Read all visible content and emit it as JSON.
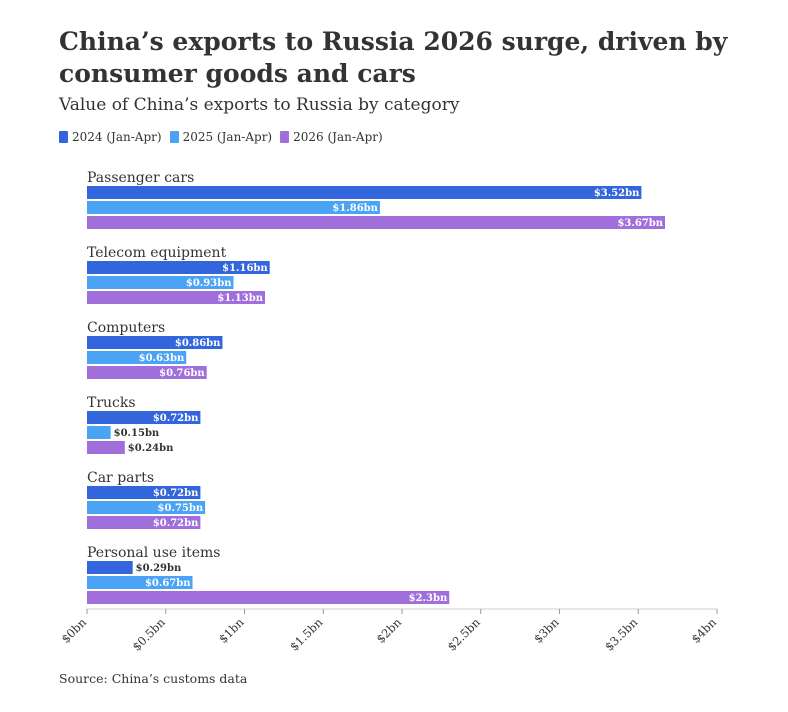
{
  "title": "China’s exports to Russia 2026 surge, driven by consumer goods and cars",
  "subtitle": "Value of China’s exports to Russia by category",
  "footer": "Source: China’s customs data",
  "legend": [
    {
      "label": "2024 (Jan-Apr)",
      "color": "#3366dd"
    },
    {
      "label": "2025 (Jan-Apr)",
      "color": "#4aa3f5"
    },
    {
      "label": "2026 (Jan-Apr)",
      "color": "#a06fdc"
    }
  ],
  "chart_data": {
    "type": "bar",
    "orientation": "horizontal",
    "categories": [
      "Passenger cars",
      "Telecom equipment",
      "Computers",
      "Trucks",
      "Car parts",
      "Personal use items"
    ],
    "series": [
      {
        "name": "2024 (Jan-Apr)",
        "values": [
          3.52,
          1.16,
          0.86,
          0.72,
          0.72,
          0.29
        ],
        "labels": [
          "$3.52bn",
          "$1.16bn",
          "$0.86bn",
          "$0.72bn",
          "$0.72bn",
          "$0.29bn"
        ]
      },
      {
        "name": "2025 (Jan-Apr)",
        "values": [
          1.86,
          0.93,
          0.63,
          0.15,
          0.75,
          0.67
        ],
        "labels": [
          "$1.86bn",
          "$0.93bn",
          "$0.63bn",
          "$0.15bn",
          "$0.75bn",
          "$0.67bn"
        ]
      },
      {
        "name": "2026 (Jan-Apr)",
        "values": [
          3.67,
          1.13,
          0.76,
          0.24,
          0.72,
          2.3
        ],
        "labels": [
          "$3.67bn",
          "$1.13bn",
          "$0.76bn",
          "$0.24bn",
          "$0.72bn",
          "$2.3bn"
        ]
      }
    ],
    "xlim": [
      0,
      4
    ],
    "xticks": [
      0,
      0.5,
      1,
      1.5,
      2,
      2.5,
      3,
      3.5,
      4
    ],
    "xtick_labels": [
      "$0bn",
      "$0.5bn",
      "$1bn",
      "$1.5bn",
      "$2bn",
      "$2.5bn",
      "$3bn",
      "$3.5bn",
      "$4bn"
    ],
    "grid": false,
    "legend_position": "top-left"
  }
}
